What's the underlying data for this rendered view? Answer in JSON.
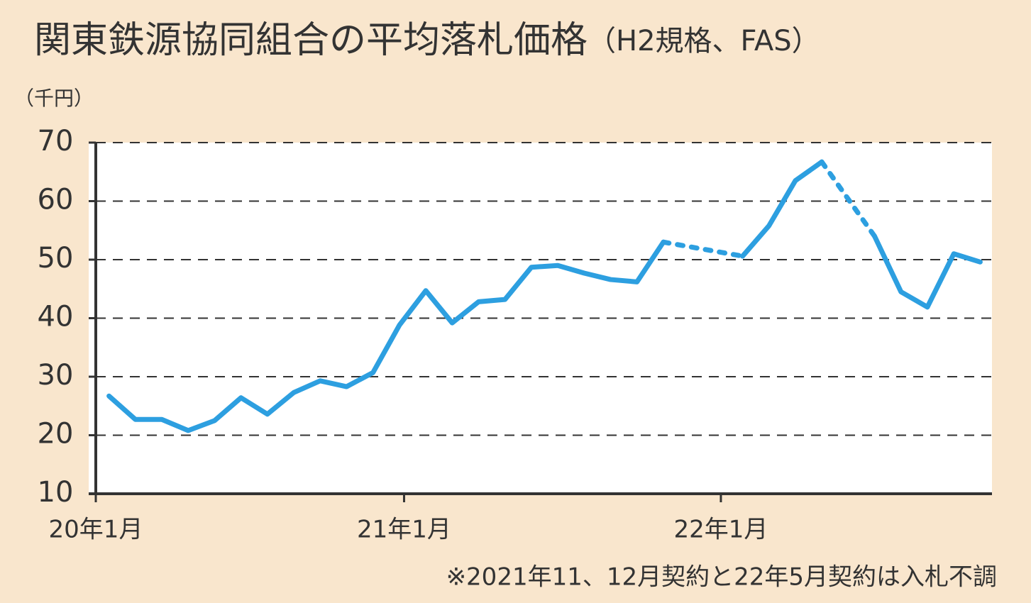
{
  "chart_data": {
    "type": "line",
    "title": "関東鉄源協同組合の平均落札価格",
    "subtitle": "（H2規格、FAS）",
    "y_label": "（千円）",
    "note": "※2021年11、12月契約と22年5月契約は入札不調",
    "categories": [
      "20年1月",
      null,
      null,
      null,
      null,
      null,
      null,
      null,
      null,
      null,
      null,
      null,
      "21年1月",
      null,
      null,
      null,
      null,
      null,
      null,
      null,
      null,
      null,
      null,
      null,
      "22年1月",
      null,
      null,
      null,
      null,
      null,
      null,
      null,
      null,
      null
    ],
    "series": [
      {
        "name": "平均落札価格",
        "color": "#2d9fe0",
        "values": [
          26.7,
          22.7,
          22.7,
          20.8,
          22.5,
          26.4,
          23.6,
          27.3,
          29.3,
          28.3,
          30.7,
          38.8,
          44.7,
          39.2,
          42.8,
          43.2,
          48.7,
          49.0,
          47.7,
          46.6,
          46.2,
          53.0,
          null,
          null,
          50.6,
          55.8,
          63.5,
          66.7,
          null,
          54.0,
          44.5,
          41.9,
          51.0,
          49.6
        ]
      }
    ],
    "ylim": [
      10,
      70
    ],
    "yticks": [
      10,
      20,
      30,
      40,
      50,
      60,
      70
    ],
    "grid": true
  }
}
